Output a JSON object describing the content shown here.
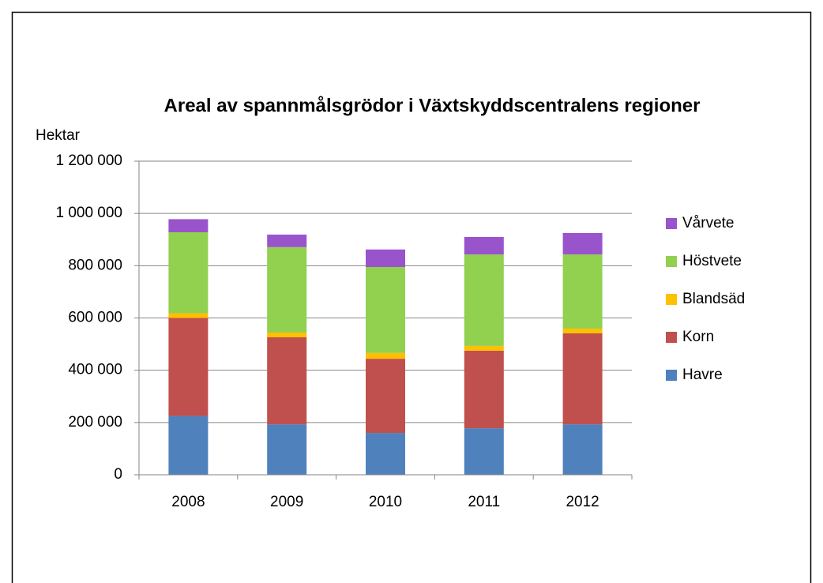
{
  "chart_data": {
    "type": "bar",
    "stacked": true,
    "title": "Areal av spannmålsgrödor i Växtskyddscentralens regioner",
    "y_label": "Hektar",
    "categories": [
      "2008",
      "2009",
      "2010",
      "2011",
      "2012"
    ],
    "series": [
      {
        "name": "Havre",
        "color": "#4f81bd",
        "values": [
          225000,
          193000,
          160000,
          178000,
          193000
        ]
      },
      {
        "name": "Korn",
        "color": "#c0504d",
        "values": [
          375000,
          333000,
          284000,
          297000,
          348000
        ]
      },
      {
        "name": "Blandsäd",
        "color": "#ffc000",
        "values": [
          18000,
          18000,
          22000,
          18000,
          18000
        ]
      },
      {
        "name": "Höstvete",
        "color": "#92d050",
        "values": [
          310000,
          327000,
          329000,
          350000,
          284000
        ]
      },
      {
        "name": "Vårvete",
        "color": "#9954cc",
        "values": [
          50000,
          48000,
          67000,
          67000,
          82000
        ]
      }
    ],
    "ylim": [
      0,
      1200000
    ],
    "yticks": [
      0,
      {
        "value": 200000,
        "label": "200 000"
      },
      {
        "value": 400000,
        "label": "400 000"
      },
      {
        "value": 600000,
        "label": "600 000"
      },
      {
        "value": 800000,
        "label": "800 000"
      },
      {
        "value": 1000000,
        "label": "1 000 000"
      },
      {
        "value": 1200000,
        "label": "1 200 000"
      }
    ],
    "grid": true,
    "legend": "right"
  }
}
